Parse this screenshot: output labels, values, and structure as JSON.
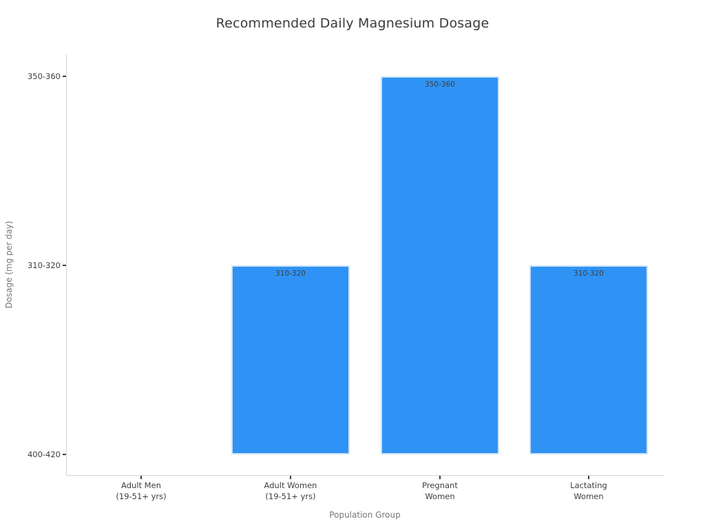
{
  "title": "Recommended Daily Magnesium Dosage",
  "chart_data": {
    "type": "bar",
    "title": "Recommended Daily Magnesium Dosage",
    "xlabel": "Population Group",
    "ylabel": "Dosage (mg per day)",
    "y_axis_type": "categorical",
    "y_tick_labels": [
      "400-420",
      "310-320",
      "350-360"
    ],
    "bars": [
      {
        "category": "Adult Men\n(19-51+ yrs)",
        "value": "400-420",
        "y_index": 0,
        "label": ""
      },
      {
        "category": "Adult Women\n(19-51+ yrs)",
        "value": "310-320",
        "y_index": 1,
        "label": "310-320"
      },
      {
        "category": "Pregnant\nWomen",
        "value": "350-360",
        "y_index": 2,
        "label": "350-360"
      },
      {
        "category": "Lactating\nWomen",
        "value": "310-320",
        "y_index": 1,
        "label": "310-320"
      }
    ],
    "bar_color": "#2f93f5",
    "bar_edge_color": "#cbe2f9",
    "axis_color": "#d4d4d4",
    "tick_color": "#3e3e3e",
    "title_color": "#3a3a3a",
    "axis_label_color": "#767676",
    "grid": false,
    "legend": "none"
  }
}
